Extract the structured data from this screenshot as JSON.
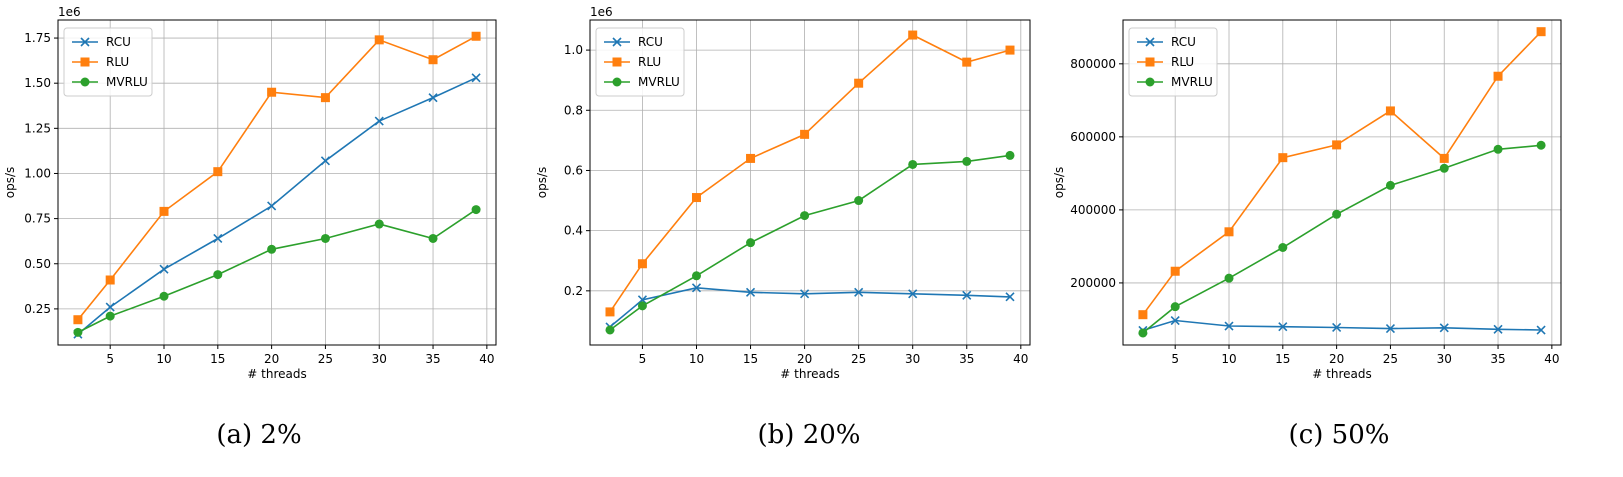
{
  "colors": {
    "RCU": "#1f77b4",
    "RLU": "#ff7f0e",
    "MVRLU": "#2ca02c"
  },
  "chart_data": [
    {
      "type": "line",
      "caption": "(a) 2%",
      "xlabel": "# threads",
      "ylabel": "ops/s",
      "offset_label": "1e6",
      "x": [
        2,
        5,
        10,
        15,
        20,
        25,
        30,
        35,
        39
      ],
      "xlim": [
        0.15,
        40.85
      ],
      "ylim": [
        0.05,
        1.85
      ],
      "xticks": [
        5,
        10,
        15,
        20,
        25,
        30,
        35,
        40
      ],
      "yticks": [
        0.25,
        0.5,
        0.75,
        1.0,
        1.25,
        1.5,
        1.75
      ],
      "ytick_labels": [
        "0.25",
        "0.50",
        "0.75",
        "1.00",
        "1.25",
        "1.50",
        "1.75"
      ],
      "grid": true,
      "legend": "top-left",
      "series": [
        {
          "name": "RCU",
          "marker": "x",
          "values": [
            0.11,
            0.26,
            0.47,
            0.64,
            0.82,
            1.07,
            1.29,
            1.42,
            1.53
          ]
        },
        {
          "name": "RLU",
          "marker": "s",
          "values": [
            0.19,
            0.41,
            0.79,
            1.01,
            1.45,
            1.42,
            1.74,
            1.63,
            1.76
          ]
        },
        {
          "name": "MVRLU",
          "marker": "o",
          "values": [
            0.12,
            0.21,
            0.32,
            0.44,
            0.58,
            0.64,
            0.72,
            0.64,
            0.8
          ]
        }
      ]
    },
    {
      "type": "line",
      "caption": "(b) 20%",
      "xlabel": "# threads",
      "ylabel": "ops/s",
      "offset_label": "1e6",
      "x": [
        2,
        5,
        10,
        15,
        20,
        25,
        30,
        35,
        39
      ],
      "xlim": [
        0.15,
        40.85
      ],
      "ylim": [
        0.02,
        1.1
      ],
      "xticks": [
        5,
        10,
        15,
        20,
        25,
        30,
        35,
        40
      ],
      "yticks": [
        0.2,
        0.4,
        0.6,
        0.8,
        1.0
      ],
      "ytick_labels": [
        "0.2",
        "0.4",
        "0.6",
        "0.8",
        "1.0"
      ],
      "grid": true,
      "legend": "top-left",
      "series": [
        {
          "name": "RCU",
          "marker": "x",
          "values": [
            0.08,
            0.17,
            0.21,
            0.195,
            0.19,
            0.195,
            0.19,
            0.185,
            0.18
          ]
        },
        {
          "name": "RLU",
          "marker": "s",
          "values": [
            0.13,
            0.29,
            0.51,
            0.64,
            0.72,
            0.89,
            1.05,
            0.96,
            1.0
          ]
        },
        {
          "name": "MVRLU",
          "marker": "o",
          "values": [
            0.07,
            0.15,
            0.25,
            0.36,
            0.45,
            0.5,
            0.62,
            0.63,
            0.65
          ]
        }
      ]
    },
    {
      "type": "line",
      "caption": "(c) 50%",
      "xlabel": "# threads",
      "ylabel": "ops/s",
      "offset_label": "",
      "x": [
        2,
        5,
        10,
        15,
        20,
        25,
        30,
        35,
        39
      ],
      "xlim": [
        0.15,
        40.85
      ],
      "ylim": [
        30000,
        920000
      ],
      "xticks": [
        5,
        10,
        15,
        20,
        25,
        30,
        35,
        40
      ],
      "yticks": [
        200000,
        400000,
        600000,
        800000
      ],
      "ytick_labels": [
        "200000",
        "400000",
        "600000",
        "800000"
      ],
      "grid": true,
      "legend": "top-left",
      "series": [
        {
          "name": "RCU",
          "marker": "x",
          "values": [
            70000,
            97000,
            82000,
            80000,
            78000,
            75000,
            77000,
            73000,
            71000
          ]
        },
        {
          "name": "RLU",
          "marker": "s",
          "values": [
            113000,
            232000,
            340000,
            543000,
            578000,
            671000,
            541000,
            766000,
            888000
          ]
        },
        {
          "name": "MVRLU",
          "marker": "o",
          "values": [
            63000,
            135000,
            213000,
            297000,
            388000,
            467000,
            514000,
            566000,
            577000
          ]
        }
      ]
    }
  ]
}
